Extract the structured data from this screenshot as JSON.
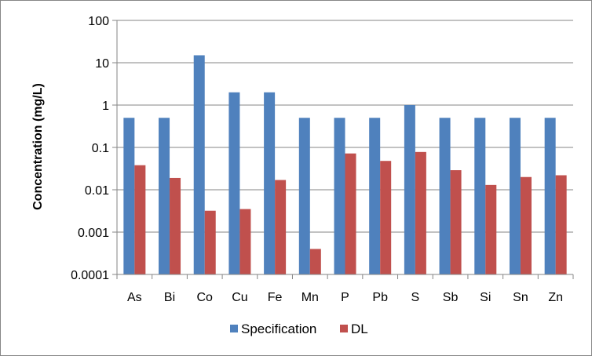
{
  "chart_data": {
    "type": "bar",
    "scale": "log",
    "ylabel": "Concentration (mg/L)",
    "xlabel": "",
    "ylim": [
      0.0001,
      100
    ],
    "yticks": [
      "100",
      "10",
      "1",
      "0.1",
      "0.01",
      "0.001",
      "0.0001"
    ],
    "grid": true,
    "legend_position": "bottom",
    "categories": [
      "As",
      "Bi",
      "Co",
      "Cu",
      "Fe",
      "Mn",
      "P",
      "Pb",
      "S",
      "Sb",
      "Si",
      "Sn",
      "Zn"
    ],
    "series": [
      {
        "name": "Specification",
        "color": "#4F81BD",
        "values": [
          0.5,
          0.5,
          15,
          2,
          2,
          0.5,
          0.5,
          0.5,
          1,
          0.5,
          0.5,
          0.5,
          0.5
        ]
      },
      {
        "name": "DL",
        "color": "#C0504D",
        "values": [
          0.038,
          0.019,
          0.0032,
          0.0035,
          0.017,
          0.0004,
          0.072,
          0.048,
          0.078,
          0.029,
          0.013,
          0.02,
          0.022
        ]
      }
    ]
  }
}
